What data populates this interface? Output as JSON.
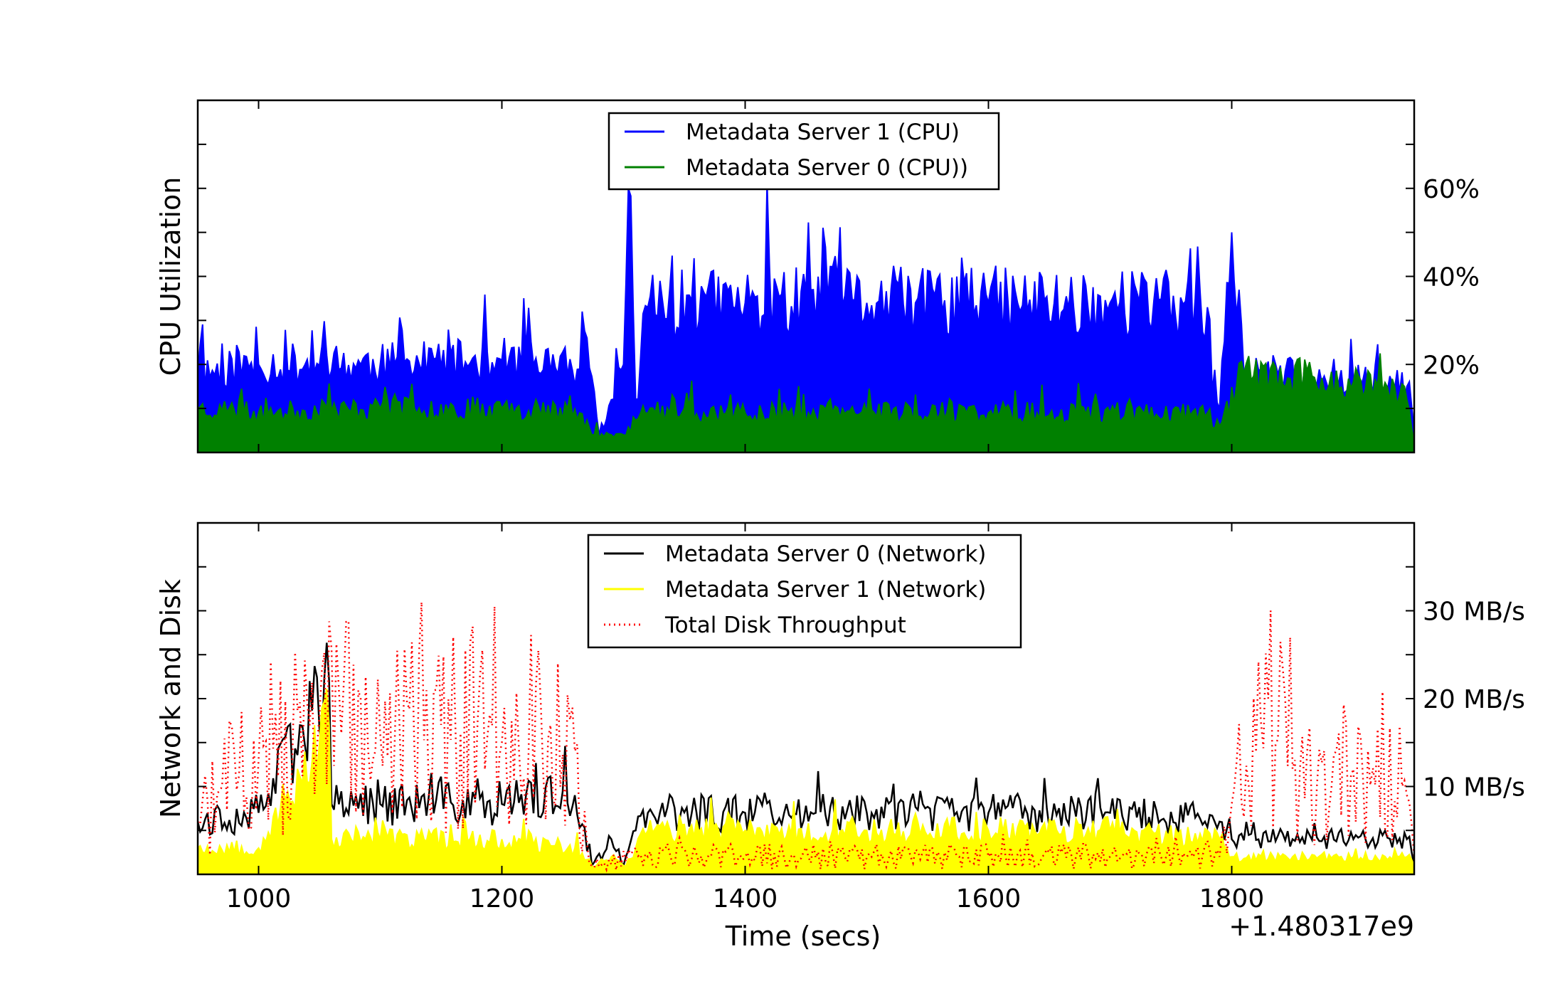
{
  "chart_data": [
    {
      "type": "area",
      "ylabel": "CPU Utilization",
      "xlabel": "",
      "xlim": [
        950,
        1950
      ],
      "ylim": [
        0,
        80
      ],
      "y_ticks": [
        {
          "value": 10,
          "label": ""
        },
        {
          "value": 20,
          "label": "20%"
        },
        {
          "value": 30,
          "label": ""
        },
        {
          "value": 40,
          "label": "40%"
        },
        {
          "value": 50,
          "label": ""
        },
        {
          "value": 60,
          "label": "60%"
        },
        {
          "value": 70,
          "label": ""
        }
      ],
      "x_ticks": [
        1000,
        1200,
        1400,
        1600,
        1800
      ],
      "y_axis_side": "right",
      "grid": false,
      "legend_position": "top-center",
      "series": [
        {
          "name": "Metadata Server 1 (CPU)",
          "color": "#0000ff",
          "style": "solid",
          "fill": true,
          "x": [
            950,
            1000,
            1100,
            1200,
            1265,
            1270,
            1280,
            1290,
            1300,
            1305,
            1310,
            1320,
            1400,
            1500,
            1600,
            1700,
            1780,
            1785,
            1790,
            1800,
            1810,
            1900,
            1945,
            1950
          ],
          "values": [
            18,
            20,
            20,
            21,
            19,
            26,
            4,
            12,
            20,
            60,
            12,
            33,
            34,
            34,
            34,
            34,
            33,
            14,
            10,
            50,
            18,
            17,
            15,
            5
          ]
        },
        {
          "name": "Metadata Server 0 (CPU))",
          "color": "#008000",
          "style": "solid",
          "fill": true,
          "x": [
            950,
            1000,
            1100,
            1200,
            1265,
            1275,
            1300,
            1320,
            1400,
            1500,
            1600,
            1700,
            1780,
            1790,
            1810,
            1900,
            1945,
            1950
          ],
          "values": [
            10,
            9,
            10,
            10,
            9,
            4,
            4,
            9,
            9,
            9,
            9,
            9,
            9,
            6,
            18,
            16,
            12,
            2
          ]
        }
      ]
    },
    {
      "type": "area",
      "ylabel": "Network and Disk",
      "xlabel": "Time (secs)",
      "x_offset_label": "+1.480317e9",
      "xlim": [
        950,
        1950
      ],
      "ylim": [
        0,
        40
      ],
      "y_ticks": [
        {
          "value": 5,
          "label": ""
        },
        {
          "value": 10,
          "label": "10 MB/s"
        },
        {
          "value": 15,
          "label": ""
        },
        {
          "value": 20,
          "label": "20 MB/s"
        },
        {
          "value": 25,
          "label": ""
        },
        {
          "value": 30,
          "label": "30 MB/s"
        },
        {
          "value": 35,
          "label": ""
        }
      ],
      "x_ticks": [
        1000,
        1200,
        1400,
        1600,
        1800
      ],
      "y_axis_side": "right",
      "grid": false,
      "legend_position": "top-center",
      "series": [
        {
          "name": "Metadata Server 0 (Network)",
          "color": "#000000",
          "style": "solid",
          "fill": false,
          "x": [
            950,
            1000,
            1058,
            1060,
            1100,
            1200,
            1260,
            1275,
            1290,
            1300,
            1310,
            1320,
            1400,
            1500,
            1600,
            1700,
            1790,
            1800,
            1850,
            1900,
            1945,
            1950
          ],
          "values": [
            6,
            7,
            22,
            8,
            8,
            8,
            9,
            1,
            4,
            1,
            5,
            7,
            7,
            7,
            7,
            7,
            6,
            4,
            4,
            4,
            4,
            1
          ]
        },
        {
          "name": "Metadata Server 1 (Network)",
          "color": "#ffff00",
          "style": "solid",
          "fill": true,
          "x": [
            950,
            1000,
            1058,
            1060,
            1100,
            1200,
            1260,
            1275,
            1290,
            1300,
            1310,
            1320,
            1400,
            1500,
            1600,
            1700,
            1790,
            1800,
            1850,
            1900,
            1945,
            1950
          ],
          "values": [
            3,
            3,
            17,
            4,
            4,
            4,
            3,
            1,
            2,
            1,
            3,
            5,
            5,
            5,
            5,
            5,
            4,
            2,
            2,
            2,
            2,
            1
          ]
        },
        {
          "name": "Total Disk Throughput",
          "color": "#ff0000",
          "style": "dotted",
          "fill": false,
          "x": [
            950,
            1000,
            1050,
            1100,
            1150,
            1200,
            1240,
            1260,
            1275,
            1320,
            1400,
            1500,
            1600,
            1700,
            1790,
            1800,
            1830,
            1850,
            1870,
            1900,
            1940,
            1950
          ],
          "values": [
            6,
            13,
            18,
            16,
            17,
            15,
            17,
            14,
            1,
            2,
            2,
            2,
            2,
            2,
            2,
            8,
            20,
            12,
            10,
            12,
            10,
            2
          ]
        }
      ]
    }
  ]
}
